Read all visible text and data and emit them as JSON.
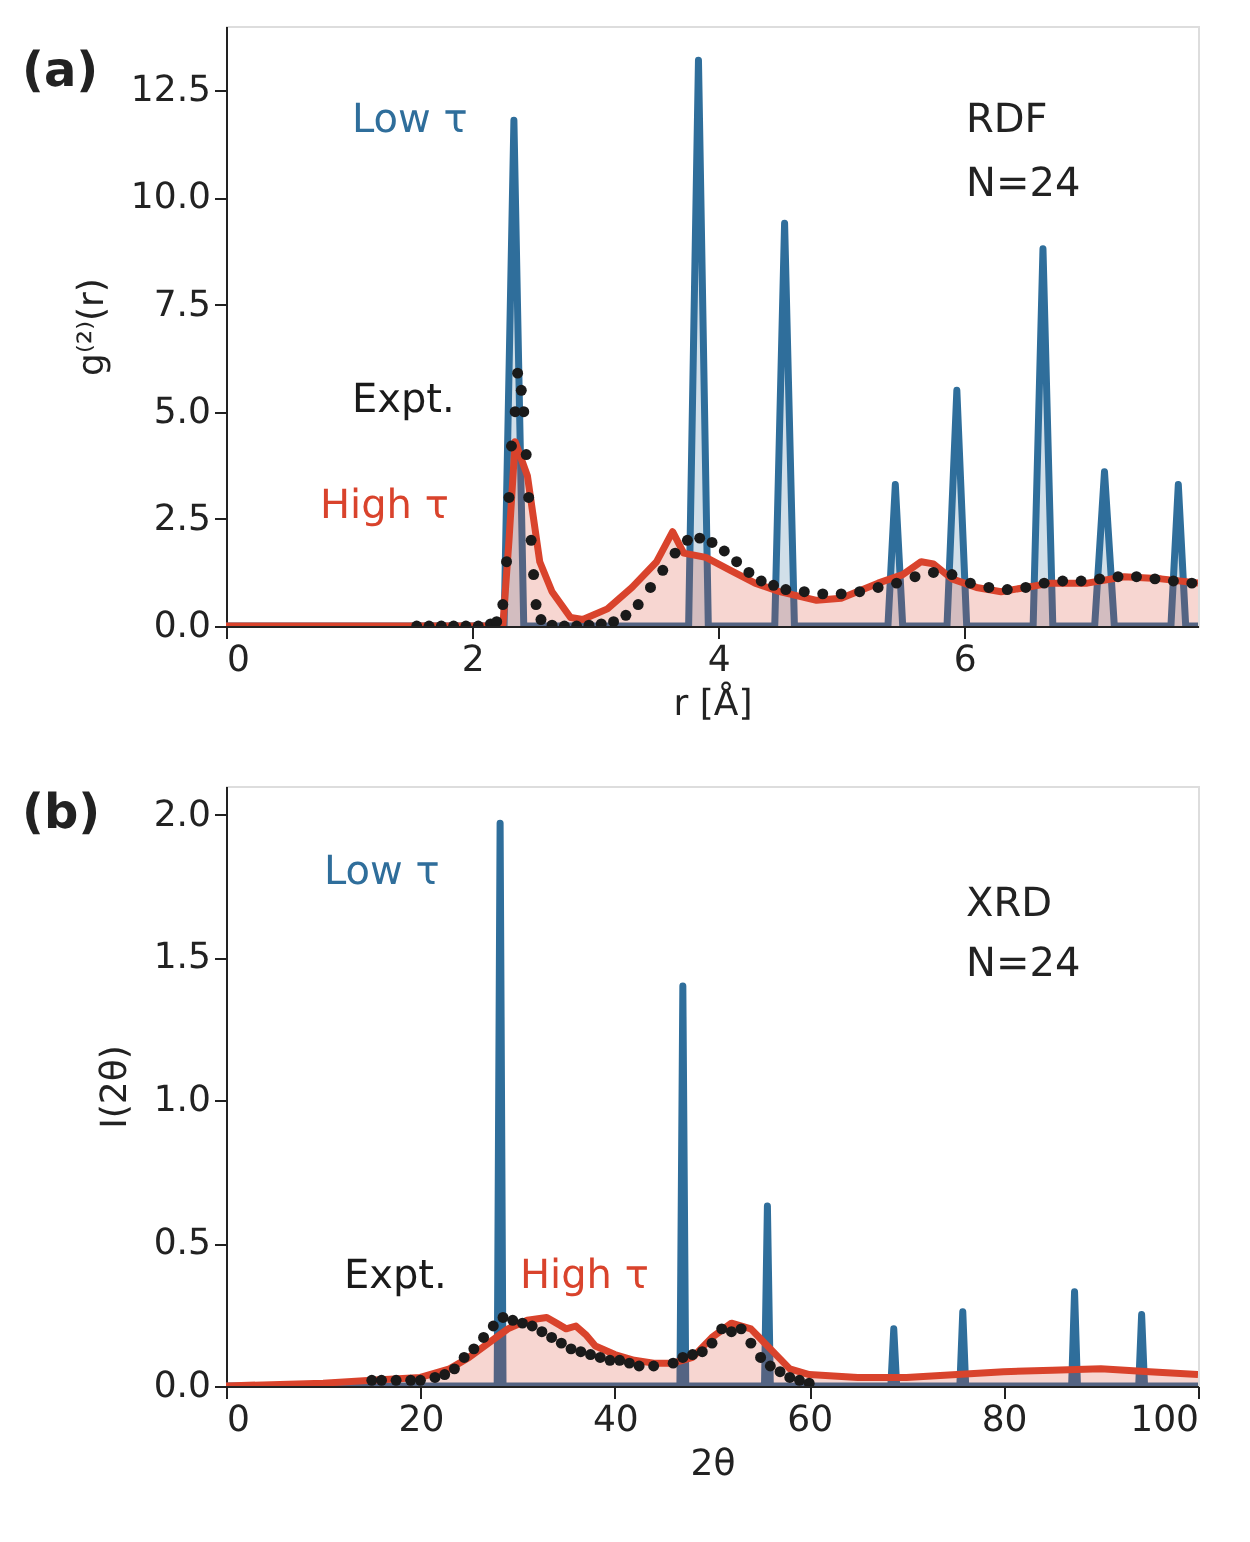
{
  "chart_data": [
    {
      "type": "area",
      "xlabel": "r [Å]",
      "ylabel": "g⁽²⁾(r)",
      "annotations": [
        "(a)",
        "RDF",
        "N=24"
      ],
      "xlim": [
        0,
        7.9
      ],
      "ylim": [
        0,
        14.0
      ],
      "xticks": [
        0,
        2,
        4,
        6
      ],
      "yticks": [
        {
          "value": 0,
          "label": "0.0"
        },
        2.5,
        {
          "value": 5,
          "label": "5.0"
        },
        7.5,
        {
          "value": 10,
          "label": "10.0"
        },
        12.5
      ],
      "grid": false,
      "legend": false,
      "series": [
        {
          "name": "Low τ",
          "color": "#2f6e9b",
          "x": [
            0,
            2.26,
            2.34,
            2.42,
            3.76,
            3.84,
            3.92,
            4.46,
            4.54,
            4.62,
            5.38,
            5.44,
            5.5,
            5.86,
            5.94,
            6.02,
            6.56,
            6.64,
            6.72,
            7.06,
            7.14,
            7.22,
            7.68,
            7.74,
            7.8,
            7.9
          ],
          "values": [
            0,
            0,
            11.8,
            0,
            0,
            13.2,
            0,
            0,
            9.4,
            0,
            0,
            3.3,
            0,
            0,
            5.5,
            0,
            0,
            8.8,
            0,
            0,
            3.6,
            0,
            0,
            3.3,
            0,
            0
          ]
        },
        {
          "name": "High τ",
          "color": "#d9432c",
          "x": [
            0,
            2.25,
            2.3,
            2.35,
            2.45,
            2.55,
            2.65,
            2.8,
            2.9,
            3.1,
            3.3,
            3.5,
            3.63,
            3.72,
            3.9,
            4.1,
            4.3,
            4.5,
            4.8,
            5.0,
            5.3,
            5.5,
            5.65,
            5.75,
            5.9,
            6.1,
            6.3,
            6.5,
            6.7,
            7.0,
            7.3,
            7.6,
            7.9
          ],
          "values": [
            0,
            0,
            2.0,
            4.3,
            3.5,
            1.5,
            0.8,
            0.2,
            0.15,
            0.4,
            0.9,
            1.5,
            2.2,
            1.7,
            1.6,
            1.3,
            1.0,
            0.8,
            0.6,
            0.65,
            1.0,
            1.2,
            1.5,
            1.45,
            1.1,
            0.9,
            0.8,
            0.9,
            1.0,
            1.0,
            1.15,
            1.1,
            1.0
          ]
        },
        {
          "name": "Expt.",
          "type": "scatter",
          "marker": "circle",
          "color": "#1a1a1a",
          "x": [
            1.55,
            1.65,
            1.75,
            1.85,
            1.95,
            2.05,
            2.15,
            2.2,
            2.25,
            2.28,
            2.3,
            2.32,
            2.35,
            2.37,
            2.4,
            2.42,
            2.44,
            2.46,
            2.48,
            2.5,
            2.52,
            2.56,
            2.65,
            2.75,
            2.85,
            2.95,
            3.05,
            3.15,
            3.25,
            3.35,
            3.45,
            3.55,
            3.65,
            3.75,
            3.85,
            3.95,
            4.05,
            4.15,
            4.25,
            4.35,
            4.45,
            4.55,
            4.7,
            4.85,
            5.0,
            5.15,
            5.3,
            5.45,
            5.6,
            5.75,
            5.9,
            6.05,
            6.2,
            6.35,
            6.5,
            6.65,
            6.8,
            6.95,
            7.1,
            7.25,
            7.4,
            7.55,
            7.7,
            7.85
          ],
          "values": [
            0,
            0,
            0,
            0,
            0,
            0,
            0.05,
            0.1,
            0.5,
            1.5,
            3.0,
            4.2,
            5.0,
            5.9,
            5.5,
            5.0,
            4.0,
            3.0,
            2.0,
            1.2,
            0.5,
            0.15,
            0.02,
            0,
            0,
            0.02,
            0.05,
            0.1,
            0.25,
            0.5,
            0.9,
            1.3,
            1.7,
            2.0,
            2.05,
            1.95,
            1.75,
            1.5,
            1.25,
            1.05,
            0.95,
            0.85,
            0.8,
            0.75,
            0.75,
            0.8,
            0.9,
            1.0,
            1.15,
            1.25,
            1.2,
            1.0,
            0.9,
            0.85,
            0.9,
            1.0,
            1.05,
            1.05,
            1.1,
            1.15,
            1.15,
            1.1,
            1.05,
            1.0
          ]
        }
      ]
    },
    {
      "type": "area",
      "xlabel": "2θ",
      "ylabel": "I(2θ)",
      "annotations": [
        "(b)",
        "XRD",
        "N=24"
      ],
      "xlim": [
        0,
        100
      ],
      "ylim": [
        0,
        2.1
      ],
      "xticks": [
        0,
        20,
        40,
        60,
        80,
        100
      ],
      "yticks": [
        {
          "value": 0,
          "label": "0.0"
        },
        0.5,
        {
          "value": 1,
          "label": "1.0"
        },
        1.5,
        {
          "value": 2,
          "label": "2.0"
        }
      ],
      "grid": false,
      "legend": false,
      "series": [
        {
          "name": "Low τ",
          "color": "#2f6e9b",
          "x": [
            0,
            27.9,
            28.2,
            28.5,
            46.7,
            47.0,
            47.3,
            55.4,
            55.7,
            56.0,
            68.4,
            68.7,
            69.0,
            75.5,
            75.8,
            76.1,
            87.0,
            87.3,
            87.6,
            93.9,
            94.2,
            94.5,
            100
          ],
          "values": [
            0,
            0,
            1.97,
            0,
            0,
            1.4,
            0,
            0,
            0.63,
            0,
            0,
            0.2,
            0,
            0,
            0.26,
            0,
            0,
            0.33,
            0,
            0,
            0.25,
            0,
            0
          ]
        },
        {
          "name": "High τ",
          "color": "#d9432c",
          "x": [
            0,
            10,
            15,
            20,
            23,
            25,
            27,
            29,
            31,
            33,
            34,
            35,
            36,
            37,
            38,
            40,
            42,
            44,
            46,
            48,
            50,
            52,
            54,
            56,
            58,
            60,
            65,
            70,
            80,
            85,
            90,
            95,
            100
          ],
          "values": [
            0,
            0.01,
            0.02,
            0.03,
            0.06,
            0.1,
            0.15,
            0.2,
            0.23,
            0.24,
            0.22,
            0.2,
            0.21,
            0.18,
            0.14,
            0.11,
            0.09,
            0.08,
            0.08,
            0.1,
            0.17,
            0.22,
            0.2,
            0.13,
            0.06,
            0.04,
            0.03,
            0.03,
            0.05,
            0.055,
            0.06,
            0.05,
            0.04
          ]
        },
        {
          "name": "Expt.",
          "type": "scatter",
          "marker": "circle",
          "color": "#1a1a1a",
          "x": [
            15,
            16,
            17.5,
            19,
            20,
            21.5,
            22.5,
            23.5,
            24.5,
            25.5,
            26.5,
            27.5,
            28.5,
            29.5,
            30.5,
            31.5,
            32.5,
            33.5,
            34.5,
            35.5,
            36.5,
            37.5,
            38.5,
            39.5,
            40.5,
            41.5,
            42.5,
            44,
            46,
            47,
            48,
            49,
            50,
            51,
            52,
            53,
            54,
            55,
            56,
            57,
            58,
            59,
            60
          ],
          "values": [
            0.02,
            0.02,
            0.02,
            0.02,
            0.02,
            0.03,
            0.04,
            0.06,
            0.1,
            0.13,
            0.17,
            0.21,
            0.24,
            0.23,
            0.22,
            0.21,
            0.19,
            0.17,
            0.15,
            0.13,
            0.12,
            0.11,
            0.1,
            0.09,
            0.09,
            0.08,
            0.07,
            0.07,
            0.08,
            0.1,
            0.11,
            0.12,
            0.15,
            0.2,
            0.19,
            0.2,
            0.15,
            0.1,
            0.07,
            0.05,
            0.03,
            0.02,
            0.01
          ]
        }
      ]
    }
  ]
}
